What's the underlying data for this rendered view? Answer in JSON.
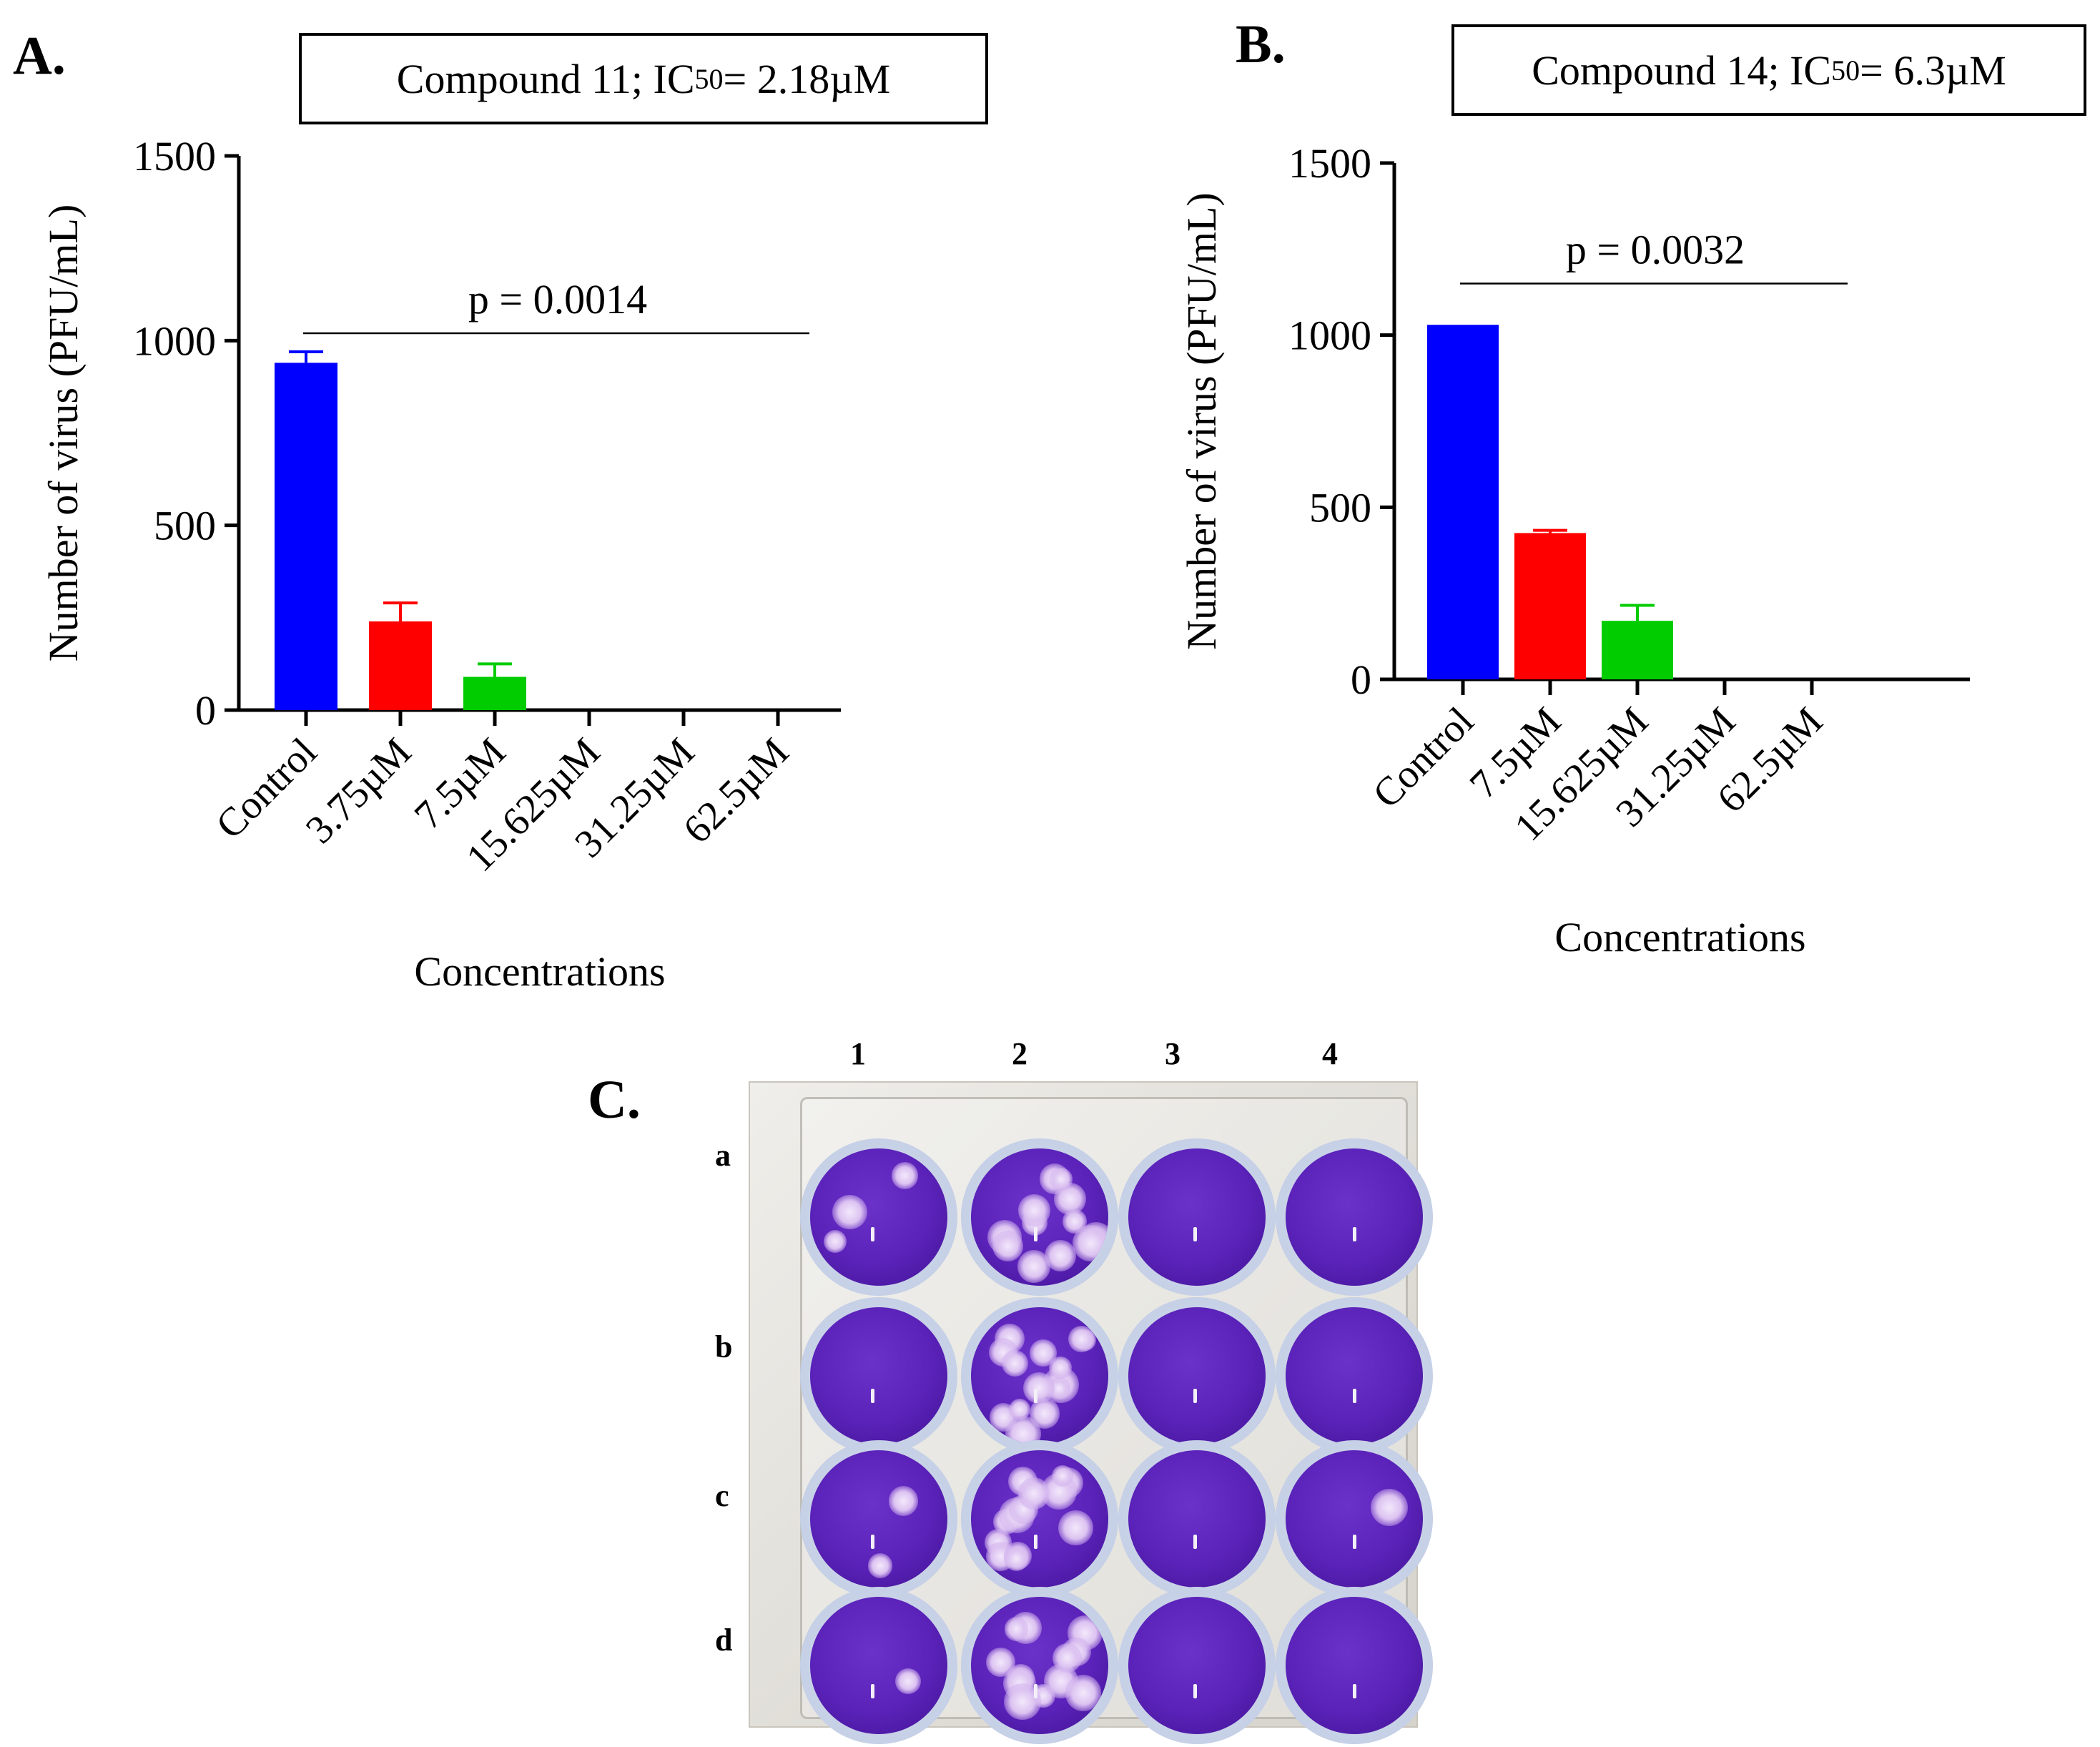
{
  "chart_data": [
    {
      "panel": "A.",
      "type": "bar",
      "title_prefix": "Compound 11; IC",
      "title_sub": "50",
      "title_suffix": " = 2.18µM",
      "categories": [
        "Control",
        "3.75µM",
        "7.5µM",
        "15.625µM",
        "31.25µM",
        "62.5µM"
      ],
      "values": [
        940,
        240,
        90,
        0,
        0,
        0
      ],
      "errors": [
        30,
        50,
        35,
        0,
        0,
        0
      ],
      "colors": [
        "#0000ff",
        "#ff0000",
        "#00cc00",
        "#000000",
        "#000000",
        "#000000"
      ],
      "ylim": [
        0,
        1500
      ],
      "yticks": [
        "0",
        "500",
        "1000",
        "1500"
      ],
      "ylabel": "Number of virus (PFU/mL)",
      "xlabel": "Concentrations",
      "annotation": "p = 0.0014",
      "annotation_y": 1020
    },
    {
      "panel": "B.",
      "type": "bar",
      "title_prefix": "Compound 14; IC",
      "title_sub": "50",
      "title_suffix": " = 6.3µM",
      "categories": [
        "Control",
        "7.5µM",
        "15.625µM",
        "31.25µM",
        "62.5µM"
      ],
      "values": [
        1030,
        425,
        170,
        0,
        0
      ],
      "errors": [
        0,
        8,
        45,
        0,
        0
      ],
      "colors": [
        "#0000ff",
        "#ff0000",
        "#00cc00",
        "#000000",
        "#000000"
      ],
      "ylim": [
        0,
        1500
      ],
      "yticks": [
        "0",
        "500",
        "1000",
        "1500"
      ],
      "ylabel": "Number of virus (PFU/mL)",
      "xlabel": "Concentrations",
      "annotation": "p = 0.0032",
      "annotation_y": 1150
    }
  ],
  "photo": {
    "panel": "C.",
    "columns": [
      "1",
      "2",
      "3",
      "4"
    ],
    "rows": [
      "a",
      "b",
      "c",
      "d"
    ]
  }
}
